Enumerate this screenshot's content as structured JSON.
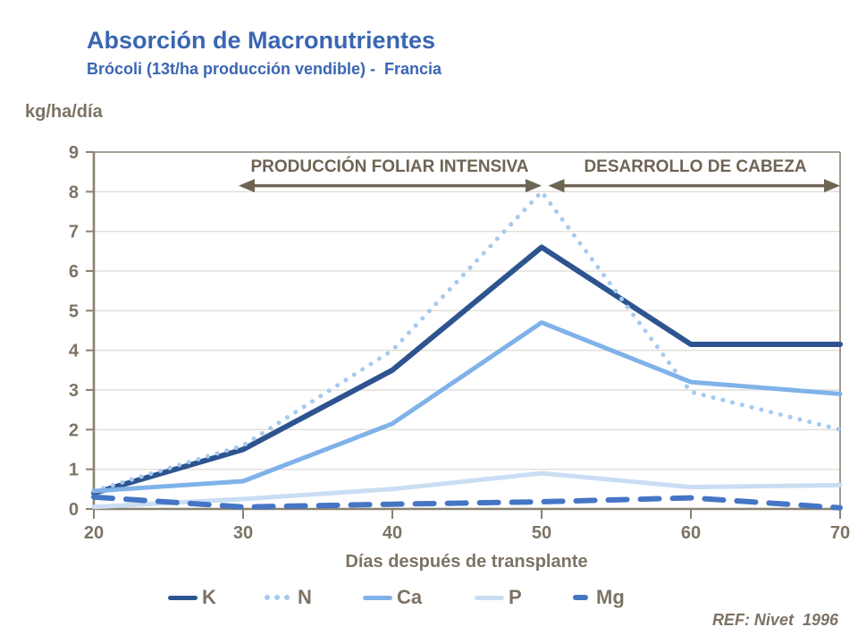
{
  "header": {
    "title": "Absorción de Macronutrientes",
    "subtitle": "Brócoli (13t/ha producción vendible) -  Francia"
  },
  "colors": {
    "title_blue": "#3A66B2",
    "axis_text": "#7D7365",
    "axis_line": "#8A8171",
    "gridline": "#E2DED8",
    "annotation": "#6E6454"
  },
  "chart_data": {
    "type": "line",
    "title": "Absorción de Macronutrientes",
    "subtitle": "Brócoli (13t/ha producción vendible) - Francia",
    "xlabel": "Días después de transplante",
    "ylabel": "kg/ha/día",
    "xlim": [
      20,
      70
    ],
    "ylim": [
      0,
      9
    ],
    "x_ticks": [
      20,
      30,
      40,
      50,
      60,
      70
    ],
    "y_ticks": [
      0,
      1,
      2,
      3,
      4,
      5,
      6,
      7,
      8,
      9
    ],
    "grid": true,
    "legend_position": "bottom",
    "x": [
      20,
      30,
      40,
      50,
      60,
      70
    ],
    "series": [
      {
        "name": "K",
        "style": "solid",
        "color": "#2E5490",
        "width": 6,
        "values": [
          0.4,
          1.5,
          3.5,
          6.6,
          4.15,
          4.15
        ]
      },
      {
        "name": "N",
        "style": "dotted",
        "color": "#A6CAEF",
        "width": 5,
        "values": [
          0.45,
          1.6,
          4.0,
          8.0,
          2.95,
          2.0
        ]
      },
      {
        "name": "Ca",
        "style": "solid",
        "color": "#7FB2E8",
        "width": 5,
        "values": [
          0.45,
          0.7,
          2.15,
          4.7,
          3.2,
          2.9
        ]
      },
      {
        "name": "P",
        "style": "solid",
        "color": "#C9DDF3",
        "width": 5,
        "values": [
          0.05,
          0.25,
          0.5,
          0.9,
          0.55,
          0.6
        ]
      },
      {
        "name": "Mg",
        "style": "dashed",
        "color": "#4575C4",
        "width": 6,
        "values": [
          0.3,
          0.05,
          0.12,
          0.18,
          0.28,
          0.03
        ]
      }
    ],
    "annotations": [
      {
        "label": "PRODUCCIÓN FOLIAR INTENSIVA",
        "x_from": 29.7,
        "x_to": 50.0,
        "y": 8.15
      },
      {
        "label": "DESARROLLO DE CABEZA",
        "x_from": 50.45,
        "x_to": 70.0,
        "y": 8.15
      }
    ]
  },
  "footer": {
    "ref": "REF: Nivet  1996"
  }
}
